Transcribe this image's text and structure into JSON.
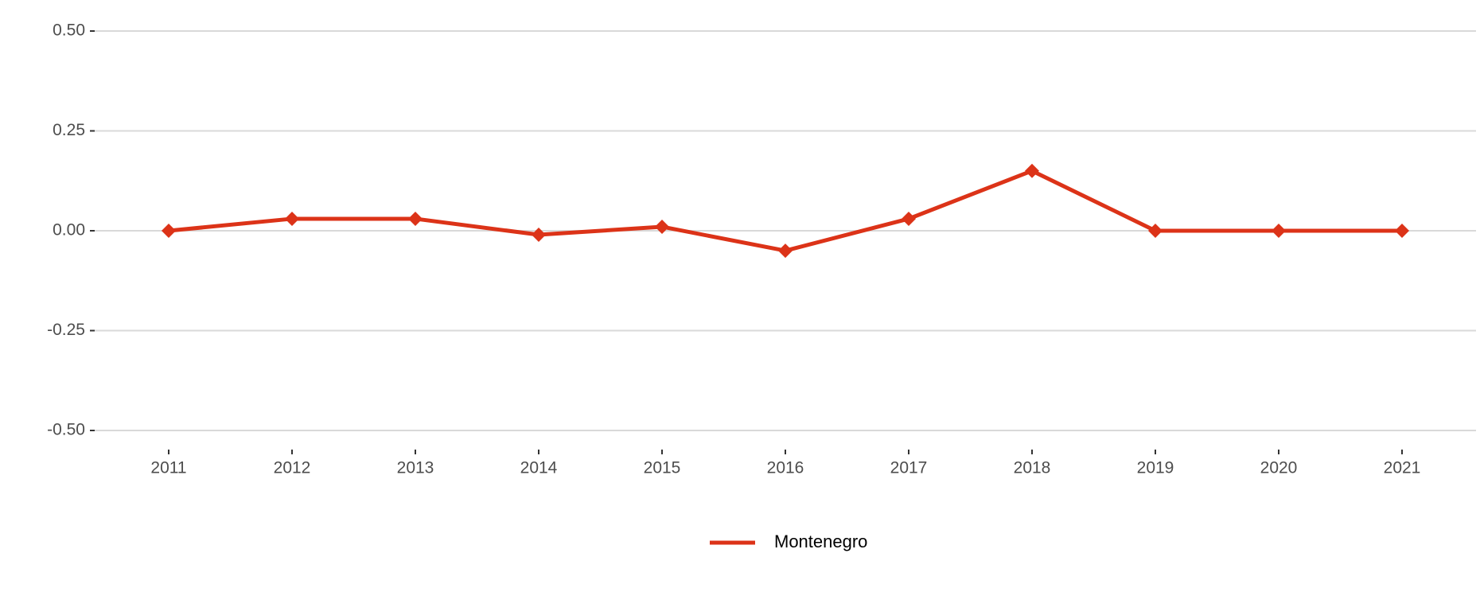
{
  "chart_data": {
    "type": "line",
    "categories": [
      "2011",
      "2012",
      "2013",
      "2014",
      "2015",
      "2016",
      "2017",
      "2018",
      "2019",
      "2020",
      "2021"
    ],
    "series": [
      {
        "name": "Montenegro",
        "color": "#dc3318",
        "values": [
          0,
          0.03,
          0.03,
          -0.01,
          0.01,
          -0.05,
          0.03,
          0.15,
          0,
          0,
          0
        ]
      }
    ],
    "ylim": [
      -0.5,
      0.5
    ],
    "yticks": [
      {
        "value": -0.5,
        "label": "-0.50"
      },
      {
        "value": -0.25,
        "label": "-0.25"
      },
      {
        "value": 0,
        "label": "0.00"
      },
      {
        "value": 0.25,
        "label": "0.25"
      },
      {
        "value": 0.5,
        "label": "0.50"
      }
    ],
    "grid": true,
    "legend": "bottom"
  }
}
